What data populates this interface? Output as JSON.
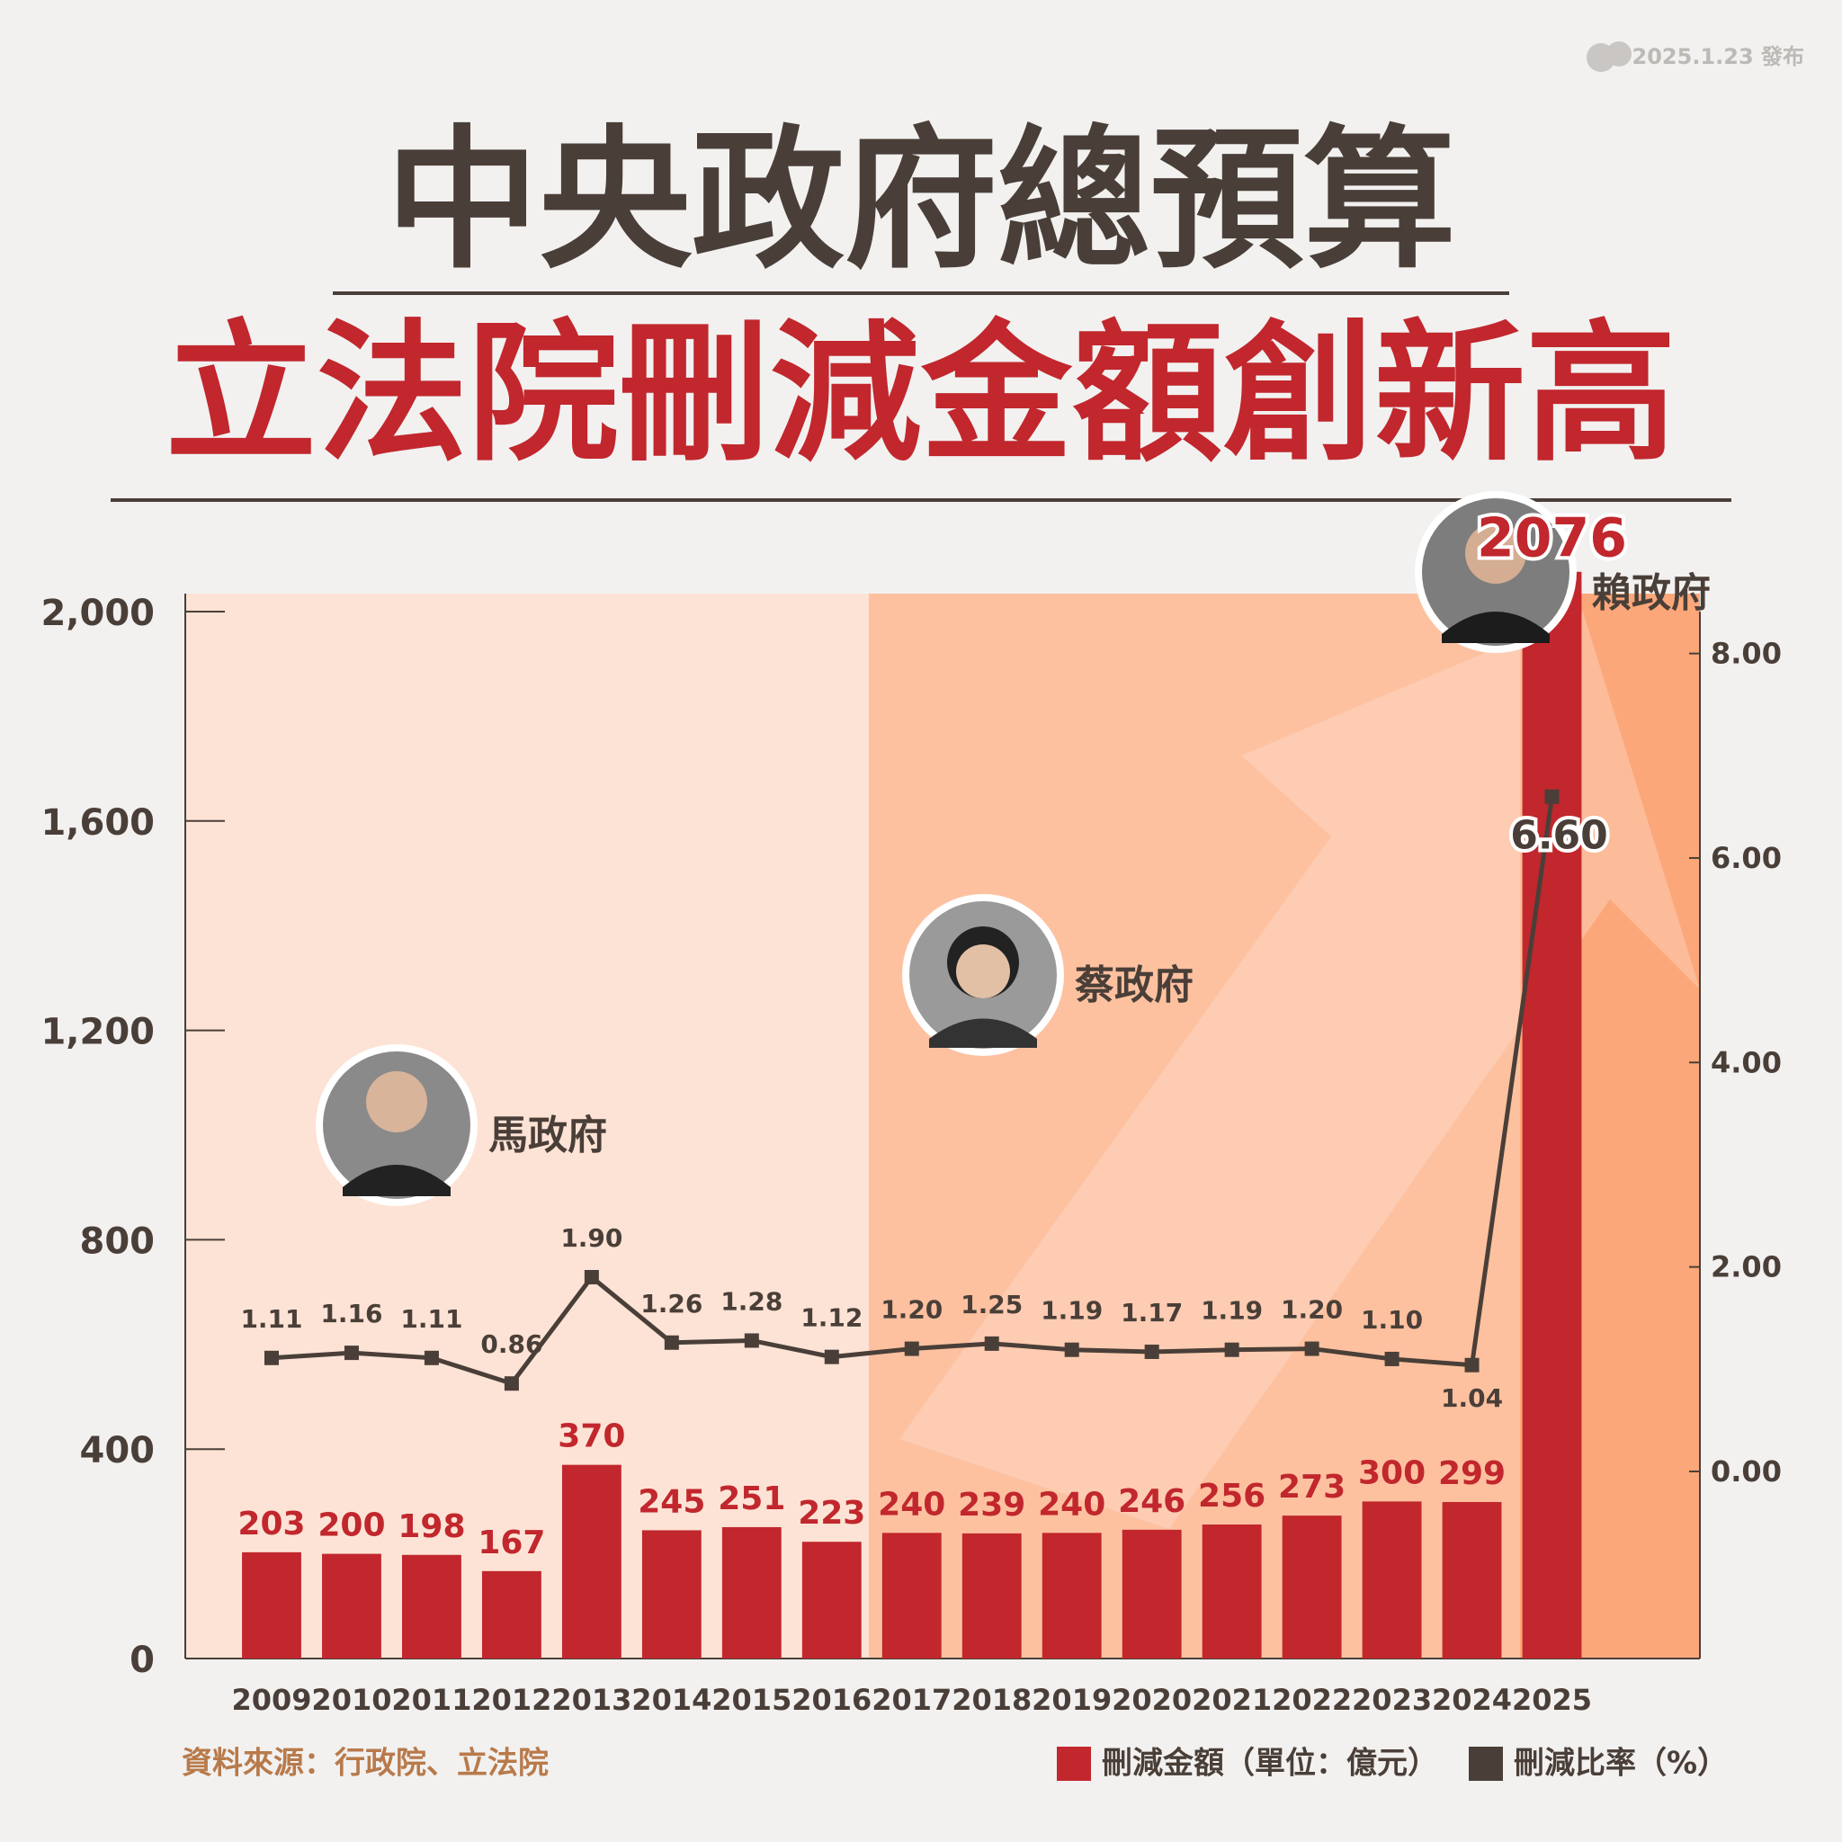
{
  "header": {
    "date": "2025.1.23 發布"
  },
  "chart_data": {
    "type": "bar",
    "title": "中央政府總預算",
    "subtitle": "立法院刪減金額創新高",
    "annotations": [
      "馬政府",
      "蔡政府",
      "賴政府"
    ],
    "source": "資料來源：行政院、立法院",
    "categories": [
      "2009",
      "2010",
      "2011",
      "2012",
      "2013",
      "2014",
      "2015",
      "2016",
      "2017",
      "2018",
      "2019",
      "2020",
      "2021",
      "2022",
      "2023",
      "2024",
      "2025"
    ],
    "series": [
      {
        "name": "刪減金額（單位：億元）",
        "color": "#c1272d",
        "type": "bar",
        "values": [
          203,
          200,
          198,
          167,
          370,
          245,
          251,
          223,
          240,
          239,
          240,
          246,
          256,
          273,
          300,
          299,
          2076
        ]
      },
      {
        "name": "刪減比率（%）",
        "color": "#4a3f38",
        "type": "line",
        "axis": "y2",
        "values": [
          1.11,
          1.16,
          1.11,
          0.86,
          1.9,
          1.26,
          1.28,
          1.12,
          1.2,
          1.25,
          1.19,
          1.17,
          1.19,
          1.2,
          1.1,
          1.04,
          6.6
        ],
        "value_labels": [
          "1.11",
          "1.16",
          "1.11",
          "0.86",
          "1.90",
          "1.26",
          "1.28",
          "1.12",
          "1.20",
          "1.25",
          "1.19",
          "1.17",
          "1.19",
          "1.20",
          "1.10",
          "1.04",
          "6.60"
        ]
      }
    ],
    "ylim": [
      0,
      2000
    ],
    "yticks": [
      0,
      400,
      800,
      {
        "value": 1200,
        "label": "1,200"
      },
      {
        "value": 1600,
        "label": "1,600"
      },
      {
        "value": 2000,
        "label": "2,000"
      }
    ],
    "y2lim": [
      -1.83,
      8.41
    ],
    "y2ticks": [
      {
        "value": 0,
        "label": "0.00"
      },
      {
        "value": 2,
        "label": "2.00"
      },
      {
        "value": 4,
        "label": "4.00"
      },
      {
        "value": 6,
        "label": "6.00"
      },
      {
        "value": 8,
        "label": "8.00"
      }
    ],
    "legend": "bottom-right"
  }
}
